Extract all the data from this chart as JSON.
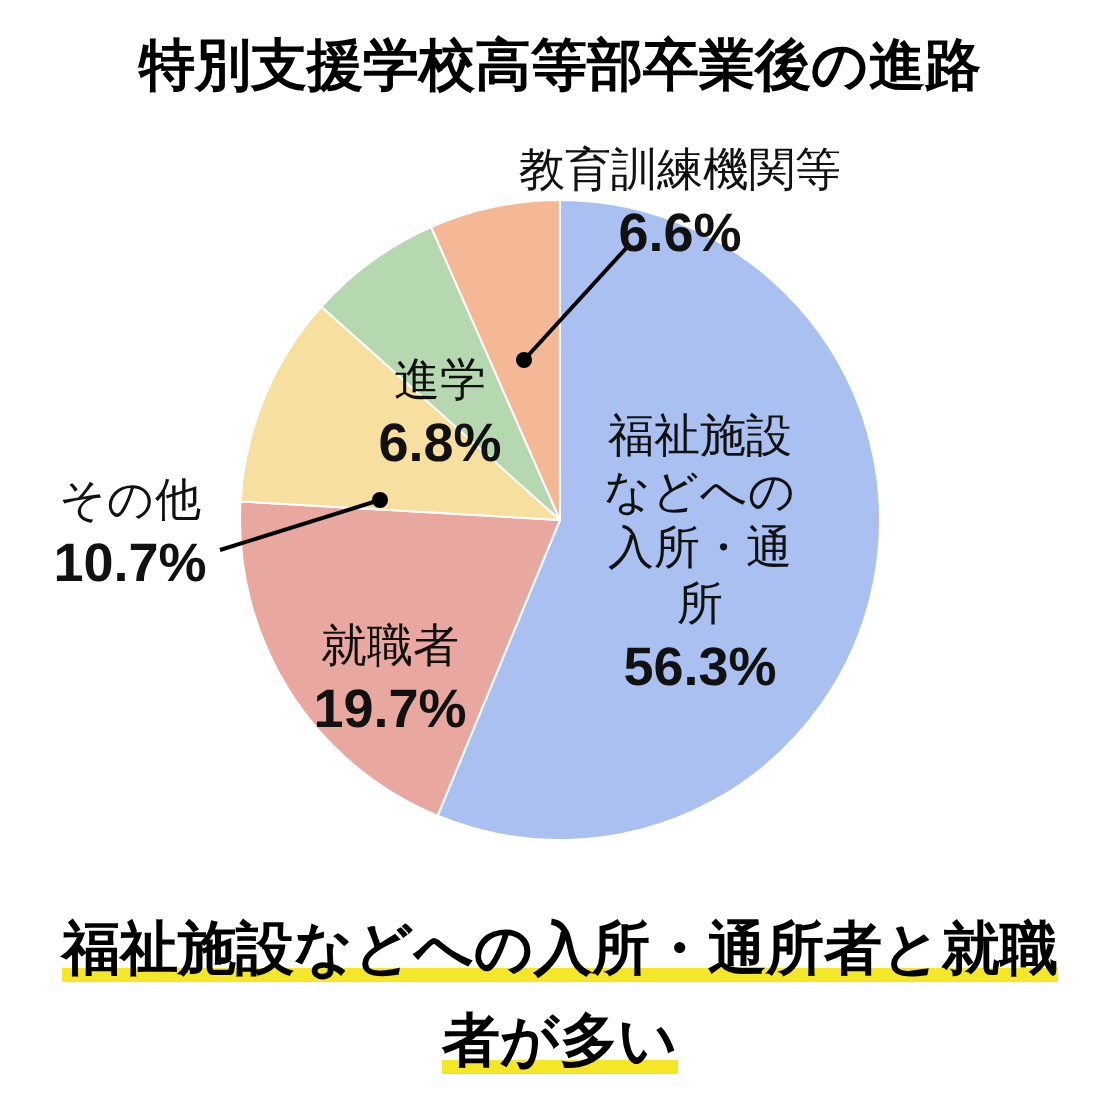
{
  "chart_data": {
    "type": "pie",
    "title": "特別支援学校高等部卒業後の進路",
    "categories": [
      "福祉施設などへの入所・通所",
      "就職者",
      "その他",
      "進学",
      "教育訓練機関等"
    ],
    "values": [
      56.3,
      19.7,
      10.7,
      6.8,
      6.6
    ],
    "value_labels": [
      "56.3%",
      "19.7%",
      "10.7%",
      "6.8%",
      "6.6%"
    ],
    "colors": [
      "#a9c0f0",
      "#e8a8a0",
      "#f7dfa0",
      "#b5d8b0",
      "#f5b896"
    ],
    "legend": false,
    "annotations": [
      "福祉施設などへの入所・通所者と就職者が多い"
    ]
  }
}
